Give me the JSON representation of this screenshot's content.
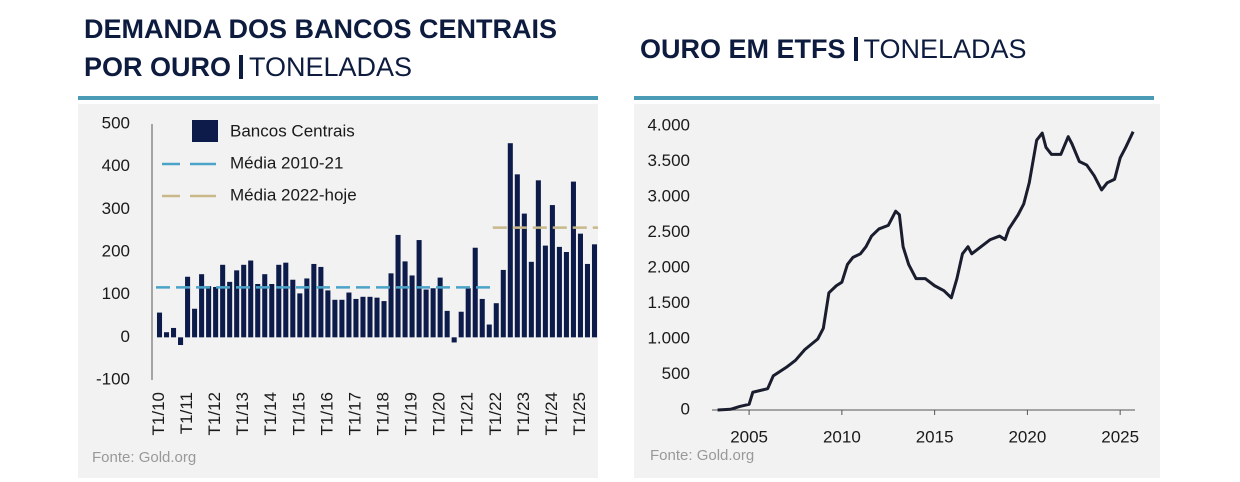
{
  "chart_data": [
    {
      "type": "bar",
      "title": "DEMANDA DOS BANCOS CENTRAIS POR OURO",
      "subtitle": "TONELADAS",
      "source": "Fonte: Gold.org",
      "categories": [
        "T1/10",
        null,
        null,
        null,
        "T1/11",
        null,
        null,
        null,
        "T1/12",
        null,
        null,
        null,
        "T1/13",
        null,
        null,
        null,
        "T1/14",
        null,
        null,
        null,
        "T1/15",
        null,
        null,
        null,
        "T1/16",
        null,
        null,
        null,
        "T1/17",
        null,
        null,
        null,
        "T1/18",
        null,
        null,
        null,
        "T1/19",
        null,
        null,
        null,
        "T1/20",
        null,
        null,
        null,
        "T1/21",
        null,
        null,
        null,
        "T1/22",
        null,
        null,
        null,
        "T1/23",
        null,
        null,
        null,
        "T1/24",
        null,
        null,
        null,
        "T1/25",
        null,
        null
      ],
      "series": [
        {
          "name": "Bancos Centrais",
          "color": "#0d1b4b",
          "values": [
            58,
            12,
            22,
            -18,
            142,
            67,
            148,
            120,
            118,
            170,
            130,
            157,
            170,
            180,
            125,
            148,
            125,
            170,
            175,
            135,
            103,
            138,
            172,
            165,
            110,
            88,
            88,
            105,
            90,
            95,
            95,
            93,
            85,
            150,
            240,
            178,
            145,
            228,
            112,
            115,
            140,
            62,
            -12,
            60,
            115,
            210,
            90,
            30,
            80,
            158,
            455,
            382,
            290,
            177,
            368,
            215,
            310,
            212,
            200,
            365,
            243,
            172,
            218
          ]
        }
      ],
      "reference_lines": [
        {
          "name": "Média 2010-21",
          "color": "#4ba3c7",
          "value": 117
        },
        {
          "name": "Média 2022-hoje",
          "color": "#c8b88a",
          "value": 257
        }
      ],
      "ylim": [
        -100,
        500
      ],
      "yticks": [
        -100,
        0,
        100,
        200,
        300,
        400,
        500
      ]
    },
    {
      "type": "line",
      "title": "OURO EM ETFS",
      "subtitle": "TONELADAS",
      "source": "Fonte: Gold.org",
      "color": "#1a1d2e",
      "x": [
        2003.3,
        2004,
        2004.5,
        2005,
        2005.2,
        2006,
        2006.3,
        2007,
        2007.5,
        2008,
        2008.7,
        2009,
        2009.3,
        2009.7,
        2010,
        2010.3,
        2010.6,
        2011,
        2011.3,
        2011.6,
        2012,
        2012.5,
        2012.9,
        2013.1,
        2013.3,
        2013.6,
        2014,
        2014.5,
        2015,
        2015.5,
        2015.9,
        2016.2,
        2016.5,
        2016.8,
        2017,
        2017.5,
        2018,
        2018.5,
        2018.8,
        2019,
        2019.5,
        2019.8,
        2020.1,
        2020.5,
        2020.8,
        2021,
        2021.3,
        2021.8,
        2022.2,
        2022.4,
        2022.8,
        2023.2,
        2023.6,
        2024,
        2024.3,
        2024.7,
        2025,
        2025.3,
        2025.7
      ],
      "values": [
        0,
        10,
        50,
        80,
        250,
        300,
        480,
        600,
        700,
        850,
        1000,
        1150,
        1650,
        1750,
        1800,
        2050,
        2150,
        2200,
        2300,
        2450,
        2550,
        2600,
        2800,
        2750,
        2300,
        2050,
        1850,
        1850,
        1750,
        1680,
        1580,
        1850,
        2200,
        2300,
        2200,
        2300,
        2400,
        2450,
        2400,
        2550,
        2750,
        2900,
        3200,
        3800,
        3900,
        3700,
        3600,
        3600,
        3850,
        3750,
        3500,
        3450,
        3300,
        3100,
        3200,
        3250,
        3550,
        3700,
        3920
      ],
      "xlim": [
        2003,
        2025.8
      ],
      "xticks": [
        2005,
        2010,
        2015,
        2020,
        2025
      ],
      "ylim": [
        0,
        4000
      ],
      "yticks": [
        0,
        500,
        {
          "value": 1000,
          "label": "1.000"
        },
        {
          "value": 1500,
          "label": "1.500"
        },
        {
          "value": 2000,
          "label": "2.000"
        },
        {
          "value": 2500,
          "label": "2.500"
        },
        {
          "value": 3000,
          "label": "3.000"
        },
        {
          "value": 3500,
          "label": "3.500"
        },
        {
          "value": 4000,
          "label": "4.000"
        }
      ]
    }
  ]
}
